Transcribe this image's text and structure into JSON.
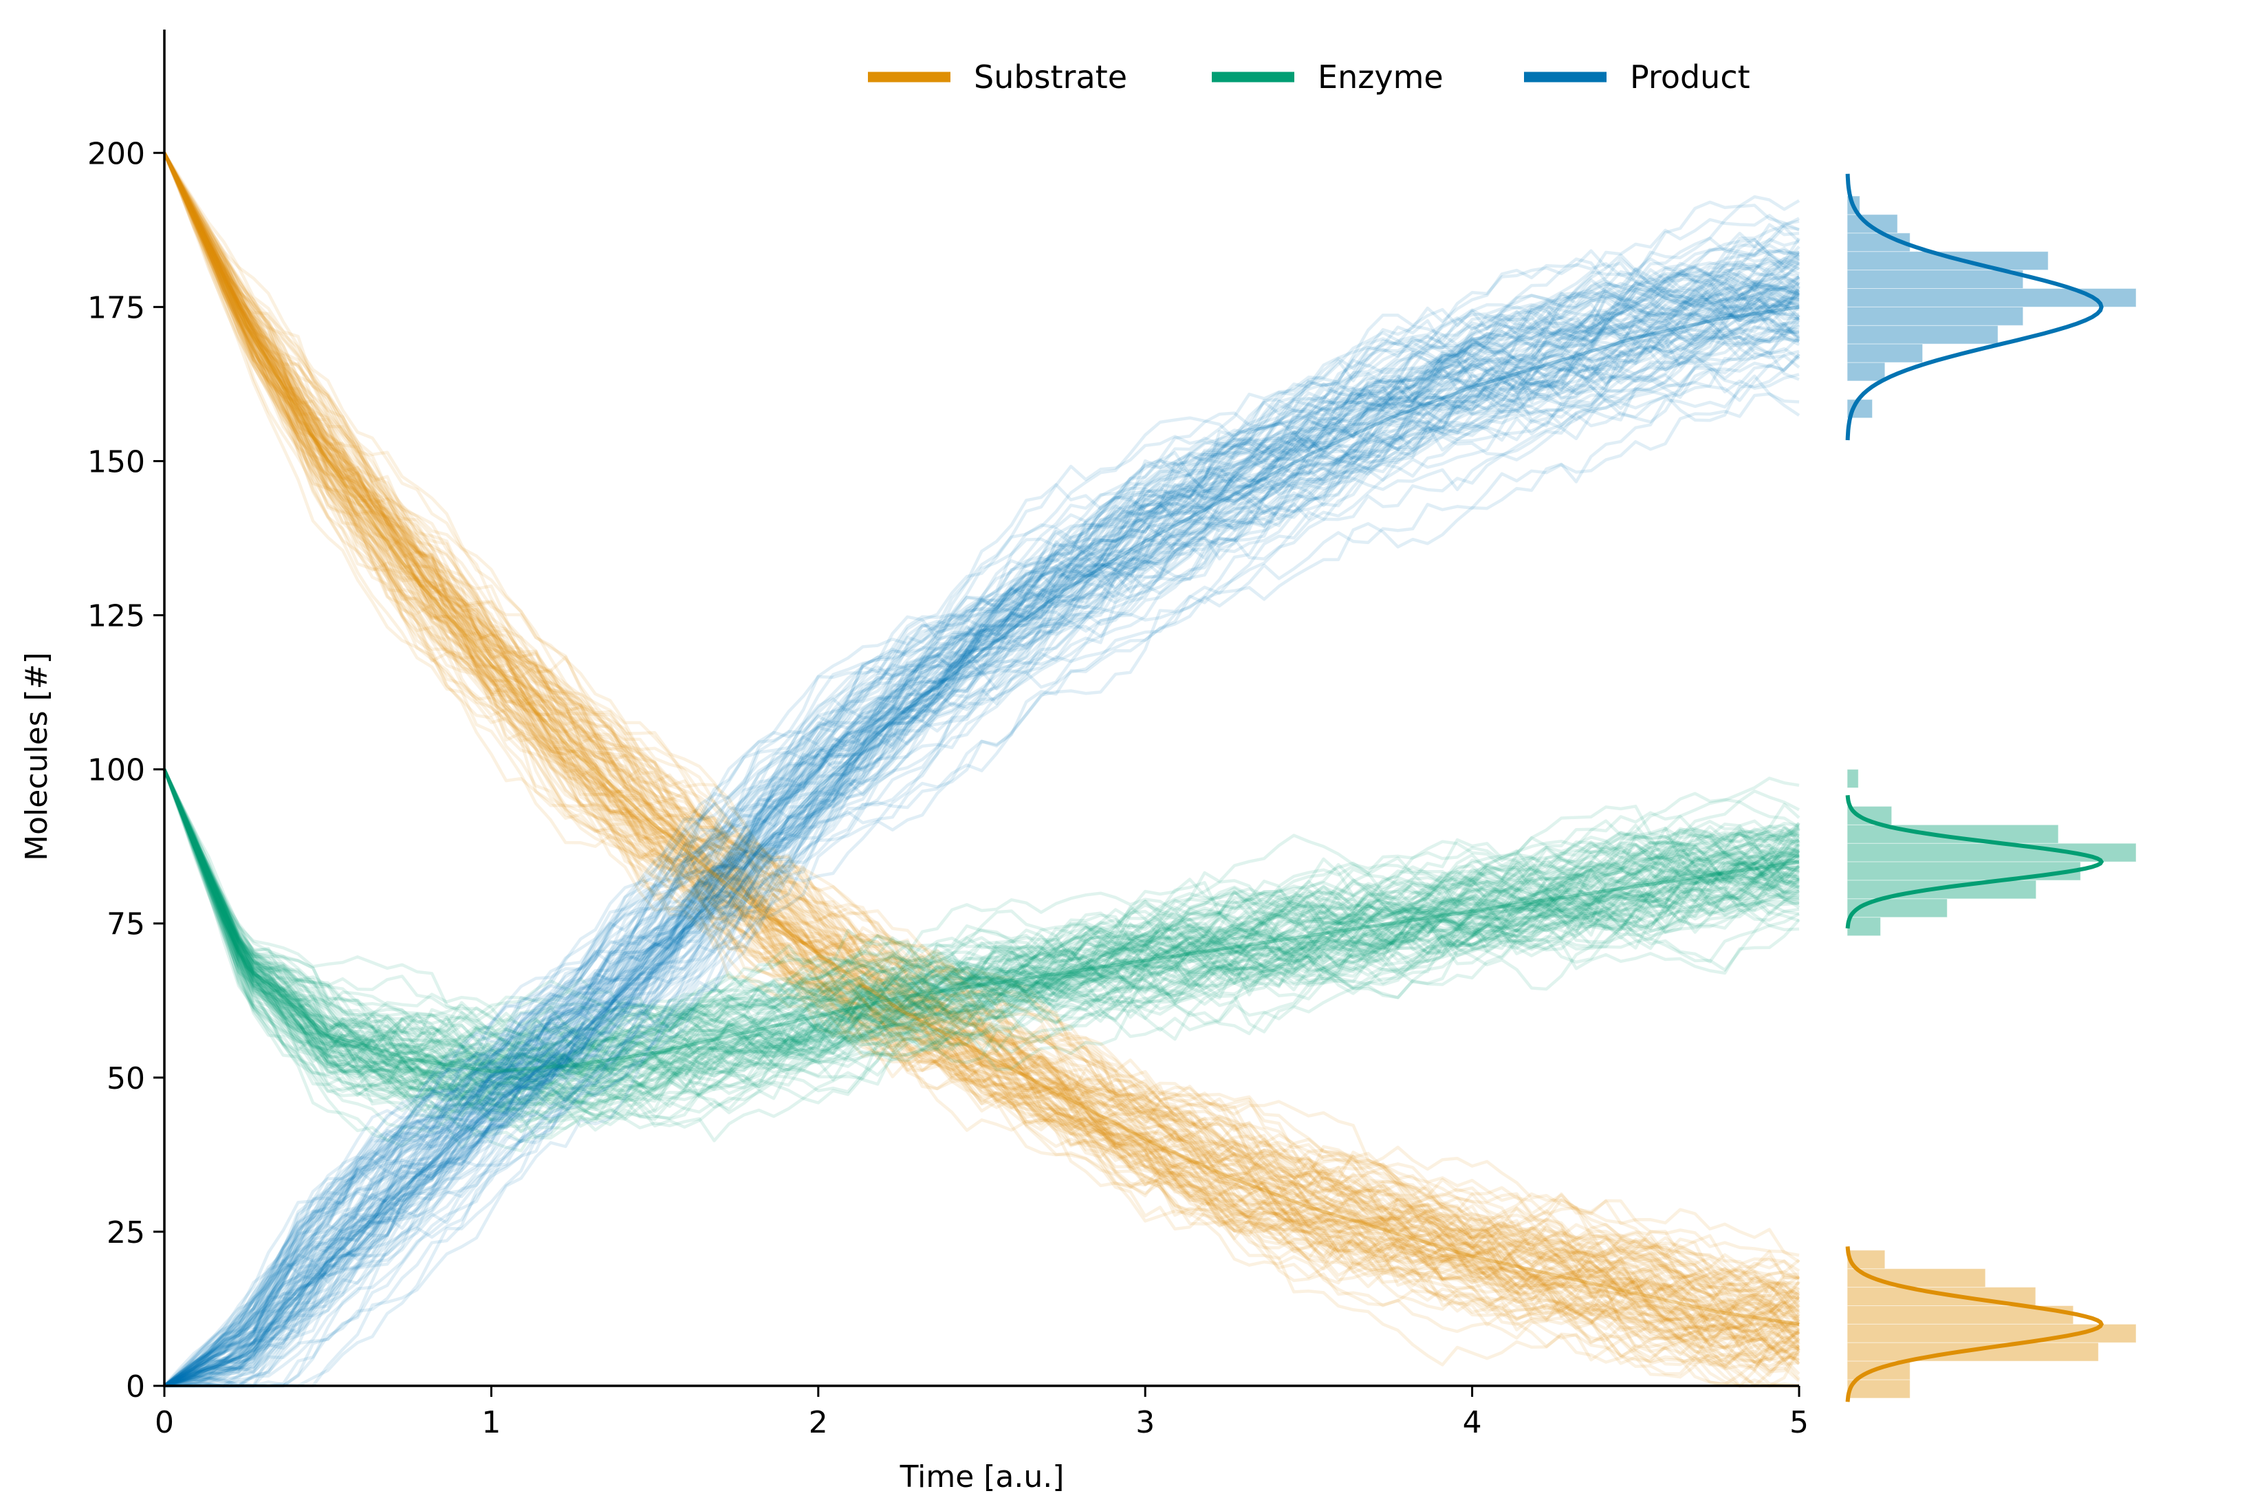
{
  "chart_data": {
    "type": "line",
    "title": "",
    "xlabel": "Time [a.u.]",
    "ylabel": "Molecules [#]",
    "xlim": [
      0,
      5
    ],
    "ylim": [
      0,
      220
    ],
    "x_ticks": [
      0,
      1,
      2,
      3,
      4,
      5
    ],
    "y_ticks": [
      0,
      25,
      50,
      75,
      100,
      125,
      150,
      175,
      200
    ],
    "grid": false,
    "legend_position": "top-center",
    "trajectories_per_series": 100,
    "colors": {
      "substrate": "#de8f05",
      "enzyme": "#029e73",
      "product": "#0173b2"
    },
    "x": [
      0,
      0.25,
      0.5,
      0.75,
      1,
      1.25,
      1.5,
      1.75,
      2,
      2.25,
      2.5,
      2.75,
      3,
      3.25,
      3.5,
      3.75,
      4,
      4.25,
      4.5,
      4.75,
      5
    ],
    "series": [
      {
        "name": "Substrate",
        "key": "substrate",
        "color": "#de8f05",
        "values": [
          200,
          172,
          150,
          132,
          117,
          103,
          91,
          80,
          70,
          61,
          54,
          47,
          40,
          34,
          29,
          25,
          21,
          18,
          15,
          12,
          10
        ],
        "final_distribution": {
          "mean": 10,
          "sd": 3.5
        }
      },
      {
        "name": "Enzyme",
        "key": "enzyme",
        "color": "#029e73",
        "values": [
          100,
          68,
          57,
          53,
          51,
          52,
          54,
          57,
          60,
          63,
          65,
          67,
          69,
          71,
          73,
          75,
          77,
          79,
          81,
          83,
          85
        ],
        "final_distribution": {
          "mean": 85,
          "sd": 3
        }
      },
      {
        "name": "Product",
        "key": "product",
        "color": "#0173b2",
        "values": [
          0,
          5,
          20,
          33,
          45,
          56,
          69,
          83,
          97,
          109,
          119,
          129,
          137,
          144,
          151,
          157,
          162,
          166,
          170,
          173,
          175
        ],
        "final_distribution": {
          "mean": 175,
          "sd": 6
        }
      }
    ]
  }
}
